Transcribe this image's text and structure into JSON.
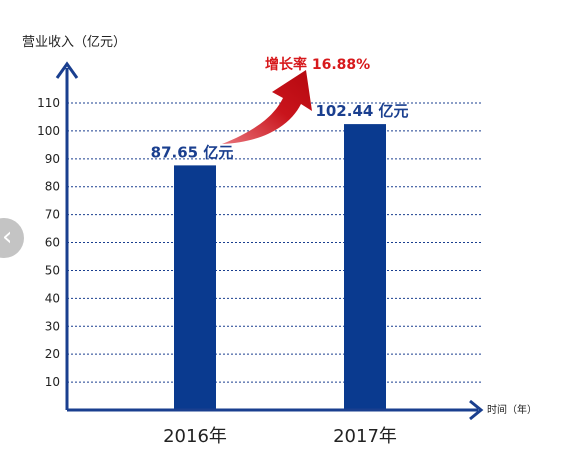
{
  "nav": {
    "prev_icon": "chevron-left-icon",
    "prev_glyph": "‹"
  },
  "chart_data": {
    "type": "bar",
    "ylabel": "营业收入（亿元）",
    "xlabel": "时间（年）",
    "categories": [
      "2016年",
      "2017年"
    ],
    "values": [
      87.65,
      102.44
    ],
    "value_labels": [
      "87.65 亿元",
      "102.44 亿元"
    ],
    "ylim": [
      0,
      110
    ],
    "yticks": [
      10,
      20,
      30,
      40,
      50,
      60,
      70,
      80,
      90,
      100,
      110
    ],
    "grid": "dotted-horizontal",
    "annotation": {
      "text": "增长率 16.88%",
      "color": "#d7191c"
    },
    "colors": {
      "bar": "#0a3a8f",
      "axis": "#1a3f8f",
      "value_label": "#1a3f8f",
      "grid": "#1a3f8f",
      "text": "#222222"
    }
  }
}
